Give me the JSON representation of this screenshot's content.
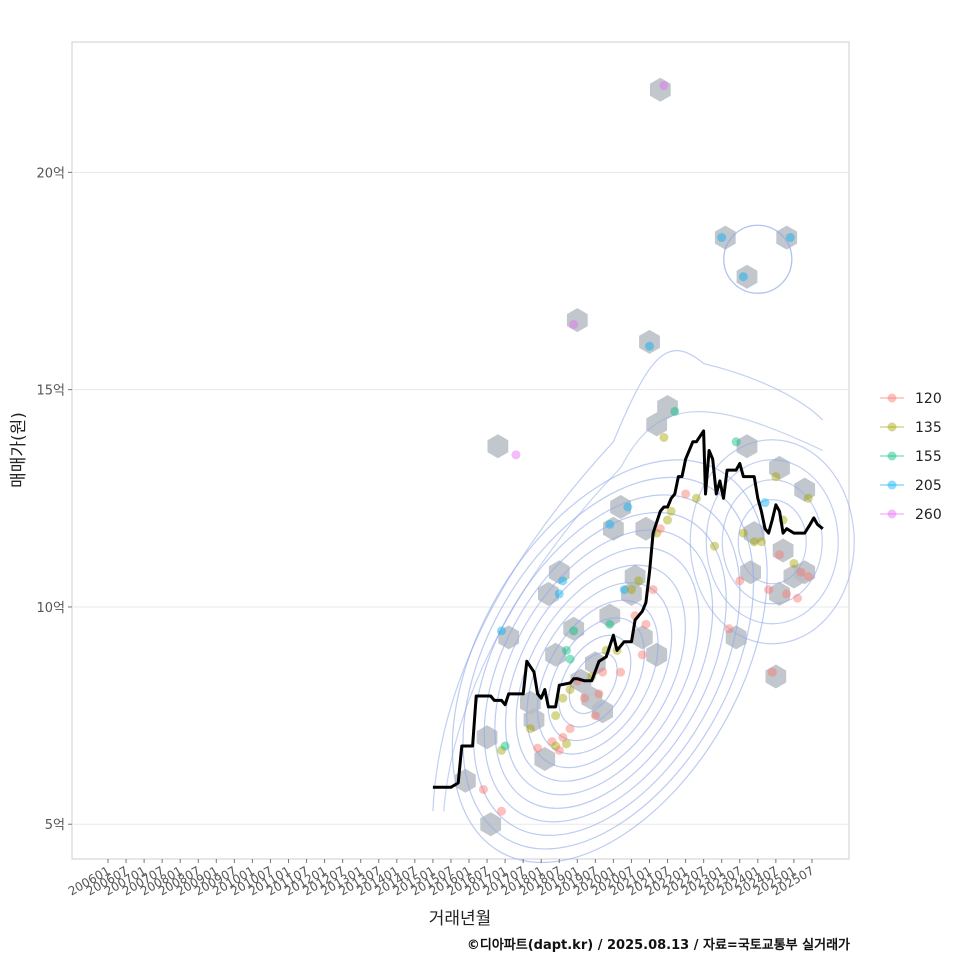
{
  "chart_data": {
    "type": "scatter",
    "xlabel": "거래년월",
    "ylabel": "매매가(원)",
    "caption": "©디아파트(dapt.kr) / 2025.08.13 / 자료=국토교통부 실거래가",
    "x_ticks": [
      "200601",
      "200607",
      "200701",
      "200707",
      "200801",
      "200807",
      "200901",
      "200907",
      "201001",
      "201007",
      "201101",
      "201107",
      "201201",
      "201207",
      "201301",
      "201307",
      "201401",
      "201407",
      "201501",
      "201507",
      "201601",
      "201607",
      "201701",
      "201707",
      "201801",
      "201807",
      "201901",
      "201907",
      "202001",
      "202007",
      "202101",
      "202107",
      "202201",
      "202207",
      "202301",
      "202307",
      "202401",
      "202407",
      "202501",
      "202507"
    ],
    "y_range": [
      4.2,
      23
    ],
    "y_ticks": [
      {
        "value": 5,
        "label": "5억"
      },
      {
        "value": 10,
        "label": "10억"
      },
      {
        "value": 15,
        "label": "15억"
      },
      {
        "value": 20,
        "label": "20억"
      }
    ],
    "legend": [
      {
        "name": "120",
        "color": "#F8766D"
      },
      {
        "name": "135",
        "color": "#A3A500"
      },
      {
        "name": "155",
        "color": "#00BF7D"
      },
      {
        "name": "205",
        "color": "#00B0F6"
      },
      {
        "name": "260",
        "color": "#E76BF3"
      }
    ],
    "density_center": [
      2019.4,
      8.2
    ],
    "density_secondary": [
      2024.4,
      11.5
    ],
    "density_peak": [
      2024.0,
      18.0
    ],
    "hexbins": [
      [
        2015.9,
        6.0
      ],
      [
        2016.6,
        5.0
      ],
      [
        2016.5,
        7.0
      ],
      [
        2017.1,
        9.3
      ],
      [
        2016.8,
        13.7
      ],
      [
        2017.8,
        7.4
      ],
      [
        2018.1,
        6.5
      ],
      [
        2018.2,
        10.3
      ],
      [
        2018.5,
        10.8
      ],
      [
        2018.4,
        8.9
      ],
      [
        2018.9,
        9.5
      ],
      [
        2019.1,
        8.3
      ],
      [
        2019.5,
        8.7
      ],
      [
        2019.9,
        9.8
      ],
      [
        2019.7,
        7.6
      ],
      [
        2020.0,
        11.8
      ],
      [
        2020.2,
        12.3
      ],
      [
        2020.6,
        10.7
      ],
      [
        2020.5,
        10.3
      ],
      [
        2020.8,
        9.3
      ],
      [
        2021.2,
        8.9
      ],
      [
        2021.0,
        16.1
      ],
      [
        2021.2,
        14.2
      ],
      [
        2021.5,
        14.6
      ],
      [
        2021.3,
        21.9
      ],
      [
        2019.0,
        16.6
      ],
      [
        2020.9,
        11.8
      ],
      [
        2023.1,
        18.5
      ],
      [
        2023.7,
        17.6
      ],
      [
        2024.8,
        18.5
      ],
      [
        2023.4,
        9.3
      ],
      [
        2023.7,
        13.7
      ],
      [
        2023.8,
        10.8
      ],
      [
        2023.9,
        11.7
      ],
      [
        2024.6,
        13.2
      ],
      [
        2024.6,
        10.3
      ],
      [
        2024.7,
        11.3
      ],
      [
        2025.0,
        10.7
      ],
      [
        2025.3,
        12.7
      ],
      [
        2025.3,
        10.8
      ],
      [
        2024.5,
        8.4
      ],
      [
        2017.7,
        7.8
      ],
      [
        2019.4,
        7.9
      ]
    ],
    "points": [
      {
        "x": 2016.4,
        "y": 5.8,
        "s": "120"
      },
      {
        "x": 2016.9,
        "y": 5.3,
        "s": "120"
      },
      {
        "x": 2016.9,
        "y": 6.7,
        "s": "135"
      },
      {
        "x": 2017.0,
        "y": 6.8,
        "s": "155"
      },
      {
        "x": 2016.9,
        "y": 9.45,
        "s": "205"
      },
      {
        "x": 2017.3,
        "y": 13.5,
        "s": "260"
      },
      {
        "x": 2017.7,
        "y": 7.2,
        "s": "135"
      },
      {
        "x": 2017.9,
        "y": 6.75,
        "s": "120"
      },
      {
        "x": 2018.3,
        "y": 6.9,
        "s": "120"
      },
      {
        "x": 2018.4,
        "y": 6.8,
        "s": "135"
      },
      {
        "x": 2018.5,
        "y": 6.7,
        "s": "120"
      },
      {
        "x": 2018.6,
        "y": 7.0,
        "s": "120"
      },
      {
        "x": 2018.7,
        "y": 6.85,
        "s": "135"
      },
      {
        "x": 2018.8,
        "y": 7.2,
        "s": "120"
      },
      {
        "x": 2018.5,
        "y": 10.3,
        "s": "205"
      },
      {
        "x": 2018.6,
        "y": 10.6,
        "s": "205"
      },
      {
        "x": 2018.7,
        "y": 9.0,
        "s": "155"
      },
      {
        "x": 2018.8,
        "y": 8.8,
        "s": "155"
      },
      {
        "x": 2018.9,
        "y": 9.45,
        "s": "155"
      },
      {
        "x": 2018.9,
        "y": 16.5,
        "s": "260"
      },
      {
        "x": 2018.4,
        "y": 7.5,
        "s": "135"
      },
      {
        "x": 2018.6,
        "y": 7.9,
        "s": "135"
      },
      {
        "x": 2018.8,
        "y": 8.1,
        "s": "135"
      },
      {
        "x": 2019.0,
        "y": 8.3,
        "s": "120"
      },
      {
        "x": 2019.2,
        "y": 7.9,
        "s": "120"
      },
      {
        "x": 2019.4,
        "y": 8.4,
        "s": "135"
      },
      {
        "x": 2019.5,
        "y": 7.5,
        "s": "120"
      },
      {
        "x": 2019.6,
        "y": 8.0,
        "s": "120"
      },
      {
        "x": 2019.7,
        "y": 8.5,
        "s": "120"
      },
      {
        "x": 2019.8,
        "y": 9.0,
        "s": "135"
      },
      {
        "x": 2019.9,
        "y": 9.6,
        "s": "155"
      },
      {
        "x": 2019.9,
        "y": 11.9,
        "s": "205"
      },
      {
        "x": 2020.1,
        "y": 9.0,
        "s": "135"
      },
      {
        "x": 2020.2,
        "y": 8.5,
        "s": "120"
      },
      {
        "x": 2020.3,
        "y": 10.4,
        "s": "205"
      },
      {
        "x": 2020.4,
        "y": 12.3,
        "s": "205"
      },
      {
        "x": 2020.5,
        "y": 10.4,
        "s": "135"
      },
      {
        "x": 2020.6,
        "y": 9.8,
        "s": "120"
      },
      {
        "x": 2020.7,
        "y": 10.6,
        "s": "135"
      },
      {
        "x": 2020.8,
        "y": 8.9,
        "s": "120"
      },
      {
        "x": 2020.9,
        "y": 9.6,
        "s": "120"
      },
      {
        "x": 2021.0,
        "y": 16.0,
        "s": "205"
      },
      {
        "x": 2021.1,
        "y": 10.4,
        "s": "120"
      },
      {
        "x": 2021.2,
        "y": 11.7,
        "s": "135"
      },
      {
        "x": 2021.3,
        "y": 11.8,
        "s": "120"
      },
      {
        "x": 2021.4,
        "y": 13.9,
        "s": "135"
      },
      {
        "x": 2021.5,
        "y": 12.0,
        "s": "135"
      },
      {
        "x": 2021.6,
        "y": 12.2,
        "s": "135"
      },
      {
        "x": 2021.7,
        "y": 14.5,
        "s": "155"
      },
      {
        "x": 2021.4,
        "y": 22.0,
        "s": "260"
      },
      {
        "x": 2022.0,
        "y": 12.6,
        "s": "120"
      },
      {
        "x": 2022.3,
        "y": 12.5,
        "s": "135"
      },
      {
        "x": 2022.8,
        "y": 11.4,
        "s": "135"
      },
      {
        "x": 2023.0,
        "y": 18.5,
        "s": "205"
      },
      {
        "x": 2023.2,
        "y": 9.5,
        "s": "120"
      },
      {
        "x": 2023.4,
        "y": 13.8,
        "s": "155"
      },
      {
        "x": 2023.5,
        "y": 10.6,
        "s": "120"
      },
      {
        "x": 2023.6,
        "y": 11.7,
        "s": "135"
      },
      {
        "x": 2023.6,
        "y": 17.6,
        "s": "205"
      },
      {
        "x": 2023.9,
        "y": 11.5,
        "s": "135"
      },
      {
        "x": 2024.1,
        "y": 11.5,
        "s": "135"
      },
      {
        "x": 2024.2,
        "y": 12.4,
        "s": "205"
      },
      {
        "x": 2024.3,
        "y": 10.4,
        "s": "120"
      },
      {
        "x": 2024.4,
        "y": 8.5,
        "s": "120"
      },
      {
        "x": 2024.5,
        "y": 13.0,
        "s": "135"
      },
      {
        "x": 2024.6,
        "y": 11.2,
        "s": "120"
      },
      {
        "x": 2024.7,
        "y": 12.0,
        "s": "135"
      },
      {
        "x": 2024.8,
        "y": 10.3,
        "s": "120"
      },
      {
        "x": 2024.9,
        "y": 18.5,
        "s": "205"
      },
      {
        "x": 2025.0,
        "y": 11.0,
        "s": "135"
      },
      {
        "x": 2025.1,
        "y": 10.2,
        "s": "120"
      },
      {
        "x": 2025.2,
        "y": 10.8,
        "s": "120"
      },
      {
        "x": 2025.4,
        "y": 12.5,
        "s": "135"
      },
      {
        "x": 2025.4,
        "y": 10.7,
        "s": "120"
      }
    ],
    "trend_line": [
      [
        2015.0,
        5.85
      ],
      [
        2015.5,
        5.85
      ],
      [
        2015.7,
        5.95
      ],
      [
        2015.8,
        6.8
      ],
      [
        2016.1,
        6.8
      ],
      [
        2016.2,
        7.95
      ],
      [
        2016.6,
        7.95
      ],
      [
        2016.7,
        7.85
      ],
      [
        2016.9,
        7.85
      ],
      [
        2017.0,
        7.75
      ],
      [
        2017.1,
        8.0
      ],
      [
        2017.5,
        8.0
      ],
      [
        2017.6,
        8.75
      ],
      [
        2017.8,
        8.5
      ],
      [
        2017.9,
        8.0
      ],
      [
        2018.0,
        7.9
      ],
      [
        2018.1,
        8.1
      ],
      [
        2018.2,
        7.7
      ],
      [
        2018.4,
        7.7
      ],
      [
        2018.5,
        8.2
      ],
      [
        2018.8,
        8.25
      ],
      [
        2018.9,
        8.35
      ],
      [
        2019.0,
        8.35
      ],
      [
        2019.2,
        8.3
      ],
      [
        2019.4,
        8.3
      ],
      [
        2019.6,
        8.75
      ],
      [
        2019.8,
        8.85
      ],
      [
        2020.0,
        9.35
      ],
      [
        2020.1,
        9.0
      ],
      [
        2020.3,
        9.2
      ],
      [
        2020.5,
        9.2
      ],
      [
        2020.6,
        9.7
      ],
      [
        2020.8,
        9.9
      ],
      [
        2020.9,
        10.1
      ],
      [
        2021.0,
        10.8
      ],
      [
        2021.1,
        11.7
      ],
      [
        2021.3,
        12.2
      ],
      [
        2021.4,
        12.3
      ],
      [
        2021.5,
        12.3
      ],
      [
        2021.6,
        12.5
      ],
      [
        2021.7,
        12.6
      ],
      [
        2021.8,
        13.0
      ],
      [
        2021.9,
        13.0
      ],
      [
        2022.0,
        13.4
      ],
      [
        2022.2,
        13.8
      ],
      [
        2022.3,
        13.8
      ],
      [
        2022.5,
        14.05
      ],
      [
        2022.55,
        12.6
      ],
      [
        2022.65,
        13.6
      ],
      [
        2022.75,
        13.4
      ],
      [
        2022.85,
        12.6
      ],
      [
        2022.95,
        12.9
      ],
      [
        2023.05,
        12.5
      ],
      [
        2023.15,
        13.15
      ],
      [
        2023.4,
        13.15
      ],
      [
        2023.5,
        13.3
      ],
      [
        2023.6,
        13.0
      ],
      [
        2023.9,
        13.0
      ],
      [
        2024.0,
        12.5
      ],
      [
        2024.1,
        12.2
      ],
      [
        2024.2,
        11.8
      ],
      [
        2024.3,
        11.7
      ],
      [
        2024.4,
        12.0
      ],
      [
        2024.5,
        12.35
      ],
      [
        2024.6,
        12.2
      ],
      [
        2024.7,
        11.7
      ],
      [
        2024.8,
        11.8
      ],
      [
        2025.0,
        11.7
      ],
      [
        2025.3,
        11.7
      ],
      [
        2025.45,
        11.9
      ],
      [
        2025.55,
        12.05
      ],
      [
        2025.65,
        11.9
      ],
      [
        2025.8,
        11.8
      ]
    ]
  }
}
